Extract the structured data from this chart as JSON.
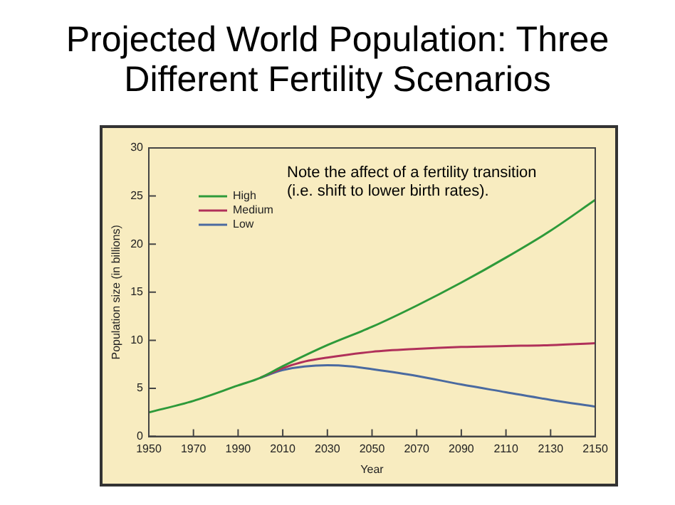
{
  "chart_data": {
    "type": "line",
    "title": "Projected World Population: Three Different Fertility Scenarios",
    "xlabel": "Year",
    "ylabel": "Population size (in billions)",
    "annotations": [
      "Note the affect of a fertility transition\n(i.e. shift to lower birth rates)."
    ],
    "xlim": [
      1950,
      2150
    ],
    "xticks": [
      1950,
      1970,
      1990,
      2010,
      2030,
      2050,
      2070,
      2090,
      2110,
      2130,
      2150
    ],
    "ylim": [
      0,
      30
    ],
    "yticks": [
      0,
      5,
      10,
      15,
      20,
      25,
      30
    ],
    "grid": false,
    "legend": "top left",
    "marker": "none",
    "line_style": "solid",
    "series": [
      {
        "name": "High",
        "color": "#2e9a3a",
        "x": [
          1950,
          1970,
          1990,
          2000,
          2010,
          2030,
          2050,
          2070,
          2090,
          2110,
          2130,
          2150
        ],
        "values": [
          2.5,
          3.7,
          5.3,
          6.1,
          7.3,
          9.5,
          11.4,
          13.6,
          16.0,
          18.6,
          21.4,
          24.6
        ]
      },
      {
        "name": "Medium",
        "color": "#b0305a",
        "x": [
          2000,
          2010,
          2020,
          2030,
          2050,
          2070,
          2090,
          2110,
          2130,
          2150
        ],
        "values": [
          6.1,
          7.1,
          7.8,
          8.2,
          8.8,
          9.1,
          9.3,
          9.4,
          9.5,
          9.7
        ]
      },
      {
        "name": "Low",
        "color": "#4a6aa0",
        "x": [
          2000,
          2010,
          2030,
          2040,
          2050,
          2070,
          2090,
          2110,
          2130,
          2150
        ],
        "values": [
          6.1,
          6.9,
          7.4,
          7.3,
          7.0,
          6.3,
          5.4,
          4.6,
          3.8,
          3.1
        ]
      }
    ]
  }
}
